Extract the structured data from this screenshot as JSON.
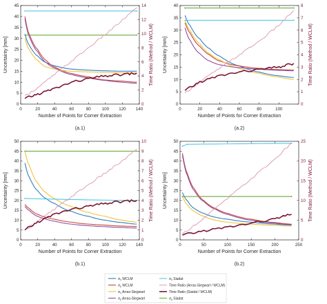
{
  "chart_data": [
    {
      "type": "line",
      "panel_label": "(a.1)",
      "xlabel": "Number of Points for Corner Extraction",
      "ylabel": "Uncertainty [mm]",
      "y2label": "Time Ratio (Method / WCLM)",
      "xlim": [
        0,
        140
      ],
      "ylim": [
        0,
        45
      ],
      "y2lim": [
        0,
        14
      ],
      "xticks": [
        0,
        20,
        40,
        60,
        80,
        100,
        120,
        140
      ],
      "yticks": [
        0,
        5,
        10,
        15,
        20,
        25,
        30,
        35,
        40,
        45
      ],
      "y2ticks": [
        0,
        2,
        4,
        6,
        8,
        10,
        12,
        14
      ],
      "series": [
        {
          "key": "sx_wclm",
          "axis": "left",
          "x": [
            5,
            10,
            20,
            30,
            40,
            60,
            80,
            100,
            120,
            137
          ],
          "values": [
            32,
            27,
            22,
            19,
            17.5,
            16,
            15.5,
            15.2,
            15,
            15
          ]
        },
        {
          "key": "sy_wclm",
          "axis": "left",
          "x": [
            5,
            10,
            20,
            30,
            40,
            60,
            80,
            100,
            120,
            137
          ],
          "values": [
            40,
            32,
            25,
            20,
            17,
            14,
            12.5,
            11,
            10.5,
            10
          ]
        },
        {
          "key": "sx_as",
          "axis": "left",
          "x": [
            5,
            10,
            20,
            30,
            40,
            60,
            80,
            100,
            120,
            137
          ],
          "values": [
            30,
            25,
            20,
            17,
            16,
            15,
            14.7,
            14.5,
            14.3,
            14.2
          ]
        },
        {
          "key": "sy_as",
          "axis": "left",
          "x": [
            5,
            10,
            20,
            30,
            40,
            60,
            80,
            100,
            120,
            137
          ],
          "values": [
            39,
            31,
            24,
            19,
            16.5,
            13.5,
            12,
            10.8,
            10,
            9.5
          ]
        },
        {
          "key": "sx_siadat",
          "axis": "left",
          "x": [
            5,
            137
          ],
          "values": [
            42.5,
            42.5
          ]
        },
        {
          "key": "sy_siadat",
          "axis": "left",
          "x": [
            5,
            137
          ],
          "values": [
            31.5,
            31.5
          ]
        },
        {
          "key": "tr_as",
          "axis": "right",
          "x": [
            5,
            20,
            40,
            60,
            80,
            100,
            120,
            137
          ],
          "values": [
            1.2,
            2.3,
            4.2,
            6.1,
            8.0,
            9.9,
            11.9,
            13.7
          ]
        },
        {
          "key": "tr_siadat",
          "axis": "right",
          "x": [
            5,
            20,
            40,
            60,
            80,
            100,
            120,
            137
          ],
          "values": [
            0.8,
            1.4,
            2.2,
            3.1,
            3.6,
            4.0,
            4.2,
            4.4
          ]
        }
      ]
    },
    {
      "type": "line",
      "panel_label": "(a.2)",
      "xlabel": "Number of Points for Corner Extraction",
      "ylabel": "Uncertainty [mm]",
      "y2label": "Time Ratio (Method / WCLM)",
      "xlim": [
        0,
        120
      ],
      "ylim": [
        0,
        40
      ],
      "y2lim": [
        0,
        8
      ],
      "xticks": [
        0,
        20,
        40,
        60,
        80,
        100
      ],
      "yticks": [
        0,
        5,
        10,
        15,
        20,
        25,
        30,
        35,
        40
      ],
      "y2ticks": [
        0,
        1,
        2,
        3,
        4,
        5,
        6,
        7,
        8
      ],
      "series": [
        {
          "key": "sx_wclm",
          "axis": "left",
          "x": [
            5,
            10,
            20,
            30,
            40,
            60,
            80,
            100,
            115
          ],
          "values": [
            36,
            32,
            26.5,
            22.5,
            19.5,
            15.5,
            13,
            11.5,
            10.8
          ]
        },
        {
          "key": "sy_wclm",
          "axis": "left",
          "x": [
            5,
            10,
            20,
            30,
            40,
            60,
            80,
            100,
            115
          ],
          "values": [
            33,
            29,
            23.5,
            20,
            17.5,
            15.5,
            14.5,
            14,
            13.8
          ]
        },
        {
          "key": "sx_as",
          "axis": "left",
          "x": [
            5,
            10,
            20,
            30,
            40,
            60,
            80,
            100,
            115
          ],
          "values": [
            34,
            30,
            24.5,
            20.5,
            18,
            14.5,
            12.5,
            11,
            10
          ]
        },
        {
          "key": "sy_as",
          "axis": "left",
          "x": [
            5,
            10,
            20,
            30,
            40,
            60,
            80,
            100,
            115
          ],
          "values": [
            31,
            26,
            20.5,
            17.5,
            16,
            14.8,
            14.2,
            13.7,
            13.5
          ]
        },
        {
          "key": "sx_siadat",
          "axis": "left",
          "x": [
            5,
            115
          ],
          "values": [
            34,
            34
          ]
        },
        {
          "key": "sy_siadat",
          "axis": "left",
          "x": [
            5,
            115
          ],
          "values": [
            39,
            39
          ]
        },
        {
          "key": "tr_as",
          "axis": "right",
          "x": [
            5,
            20,
            40,
            60,
            80,
            100,
            115
          ],
          "values": [
            0.9,
            1.8,
            2.9,
            4.0,
            5.1,
            6.4,
            7.6
          ]
        },
        {
          "key": "tr_siadat",
          "axis": "right",
          "x": [
            5,
            20,
            40,
            60,
            80,
            100,
            115
          ],
          "values": [
            1.1,
            1.8,
            2.3,
            2.6,
            2.8,
            3.0,
            3.3
          ]
        }
      ]
    },
    {
      "type": "line",
      "panel_label": "(b.1)",
      "xlabel": "Number of Points for Corner Extraction",
      "ylabel": "Uncertainty [mm]",
      "y2label": "Time Ratio (Method / WCLM)",
      "xlim": [
        0,
        140
      ],
      "ylim": [
        0,
        50
      ],
      "y2lim": [
        0,
        10
      ],
      "xticks": [
        0,
        20,
        40,
        60,
        80,
        100,
        120,
        140
      ],
      "yticks": [
        0,
        5,
        10,
        15,
        20,
        25,
        30,
        35,
        40,
        45,
        50
      ],
      "y2ticks": [
        0,
        1,
        2,
        3,
        4,
        5,
        6,
        7,
        8,
        9,
        10
      ],
      "series": [
        {
          "key": "sx_wclm",
          "axis": "left",
          "x": [
            5,
            10,
            20,
            30,
            40,
            60,
            80,
            100,
            120,
            137
          ],
          "values": [
            39,
            32,
            25,
            21,
            18.5,
            14.5,
            12,
            10,
            8.8,
            8
          ]
        },
        {
          "key": "sy_wclm",
          "axis": "left",
          "x": [
            5,
            10,
            20,
            30,
            40,
            60,
            80,
            100,
            120,
            137
          ],
          "values": [
            18,
            16,
            13,
            11.5,
            10.5,
            9,
            8,
            7.5,
            7,
            6.8
          ]
        },
        {
          "key": "sx_as",
          "axis": "left",
          "x": [
            5,
            10,
            20,
            30,
            40,
            60,
            80,
            100,
            120,
            137
          ],
          "values": [
            45,
            38,
            29,
            24,
            21,
            17,
            14,
            12,
            10,
            9
          ]
        },
        {
          "key": "sy_as",
          "axis": "left",
          "x": [
            5,
            10,
            20,
            30,
            40,
            60,
            80,
            100,
            120,
            137
          ],
          "values": [
            17,
            15,
            12,
            10.5,
            9.5,
            8,
            7.2,
            6.7,
            6.3,
            6
          ]
        },
        {
          "key": "sx_siadat",
          "axis": "left",
          "x": [
            5,
            137
          ],
          "values": [
            21,
            20
          ]
        },
        {
          "key": "sy_siadat",
          "axis": "left",
          "x": [
            5,
            137
          ],
          "values": [
            45,
            45
          ]
        },
        {
          "key": "tr_as",
          "axis": "right",
          "x": [
            5,
            20,
            40,
            60,
            80,
            100,
            120,
            137
          ],
          "values": [
            1.0,
            1.9,
            3.1,
            4.4,
            5.6,
            6.8,
            8.0,
            9.2
          ]
        },
        {
          "key": "tr_siadat",
          "axis": "right",
          "x": [
            5,
            20,
            40,
            60,
            80,
            100,
            120,
            137
          ],
          "values": [
            1.0,
            1.8,
            2.6,
            3.1,
            3.4,
            3.7,
            3.9,
            4.0
          ]
        }
      ]
    },
    {
      "type": "line",
      "panel_label": "(b.2)",
      "xlabel": "Number of Points for Corner Extraction",
      "ylabel": "Uncertainty [mm]",
      "y2label": "Time Ratio (Method / WCLM)",
      "xlim": [
        0,
        250
      ],
      "ylim": [
        0,
        50
      ],
      "y2lim": [
        0,
        25
      ],
      "xticks": [
        0,
        50,
        100,
        150,
        200,
        250
      ],
      "yticks": [
        0,
        5,
        10,
        15,
        20,
        25,
        30,
        35,
        40,
        45,
        50
      ],
      "y2ticks": [
        0,
        5,
        10,
        15,
        20,
        25
      ],
      "series": [
        {
          "key": "sx_wclm",
          "axis": "left",
          "x": [
            5,
            15,
            30,
            50,
            75,
            100,
            150,
            200,
            235
          ],
          "values": [
            24,
            20,
            16,
            13.5,
            11.5,
            10.5,
            9,
            8,
            7.5
          ]
        },
        {
          "key": "sy_wclm",
          "axis": "left",
          "x": [
            5,
            15,
            30,
            50,
            75,
            100,
            150,
            200,
            235
          ],
          "values": [
            44,
            34,
            26,
            20,
            16,
            13.5,
            10.5,
            8.8,
            8
          ]
        },
        {
          "key": "sx_as",
          "axis": "left",
          "x": [
            5,
            15,
            30,
            50,
            75,
            100,
            150,
            200,
            235
          ],
          "values": [
            22,
            18,
            14.5,
            12,
            10,
            9,
            8,
            7.4,
            7
          ]
        },
        {
          "key": "sy_as",
          "axis": "left",
          "x": [
            5,
            15,
            30,
            50,
            75,
            100,
            150,
            200,
            235
          ],
          "values": [
            43,
            33,
            25,
            19.5,
            15.5,
            13,
            10,
            8.5,
            7.7
          ]
        },
        {
          "key": "sx_siadat",
          "axis": "left",
          "x": [
            5,
            15,
            235
          ],
          "values": [
            47.5,
            48.5,
            49
          ]
        },
        {
          "key": "sy_siadat",
          "axis": "left",
          "x": [
            5,
            235
          ],
          "values": [
            22,
            22
          ]
        },
        {
          "key": "tr_as",
          "axis": "right",
          "x": [
            5,
            50,
            100,
            150,
            200,
            235
          ],
          "values": [
            1.5,
            5.5,
            10.5,
            15.5,
            20.5,
            24.5
          ]
        },
        {
          "key": "tr_siadat",
          "axis": "right",
          "x": [
            5,
            50,
            100,
            150,
            200,
            235
          ],
          "values": [
            1.2,
            2.3,
            3.2,
            4.2,
            5.3,
            6.5
          ]
        }
      ]
    }
  ],
  "legend": {
    "placement": "bottom",
    "entries": [
      {
        "key": "sx_wclm",
        "label": "σx WCLM",
        "sym": "σ",
        "sub": "x",
        "rest": " WCLM",
        "color": "#2f7fc1",
        "width": 1.1
      },
      {
        "key": "sx_siadat",
        "label": "σx Siadat",
        "sym": "σ",
        "sub": "x",
        "rest": " Siadat",
        "color": "#55c8ea",
        "width": 1.1
      },
      {
        "key": "sy_wclm",
        "label": "σy WCLM",
        "sym": "σ",
        "sub": "y",
        "rest": " WCLM",
        "color": "#c8473a",
        "width": 1.1
      },
      {
        "key": "tr_as",
        "label": "Time Ratio (Arras-Siegwart / WCLM)",
        "sym": "",
        "sub": "",
        "rest": "Time Ratio (Arras-Siegwart / WCLM)",
        "color": "#d48aa8",
        "width": 0.8
      },
      {
        "key": "sx_as",
        "label": "σx Arras-Siegwart",
        "sym": "σ",
        "sub": "x",
        "rest": " Arras-Siegwart",
        "color": "#f0c23c",
        "width": 1.1
      },
      {
        "key": "tr_siadat",
        "label": "Time Ratio (Siadat / WCLM)",
        "sym": "",
        "sub": "",
        "rest": "Time Ratio (Siadat / WCLM)",
        "color": "#7a1632",
        "width": 1.6
      },
      {
        "key": "sy_as",
        "label": "σy Arras-Siegwart",
        "sym": "σ",
        "sub": "y",
        "rest": " Arras-Siegwart",
        "color": "#8d4fa4",
        "width": 1.1
      },
      {
        "key": "sy_siadat",
        "label": "σy Siadat",
        "sym": "σ",
        "sub": "y",
        "rest": " Siadat",
        "color": "#6aaa3a",
        "width": 1.1
      }
    ]
  }
}
